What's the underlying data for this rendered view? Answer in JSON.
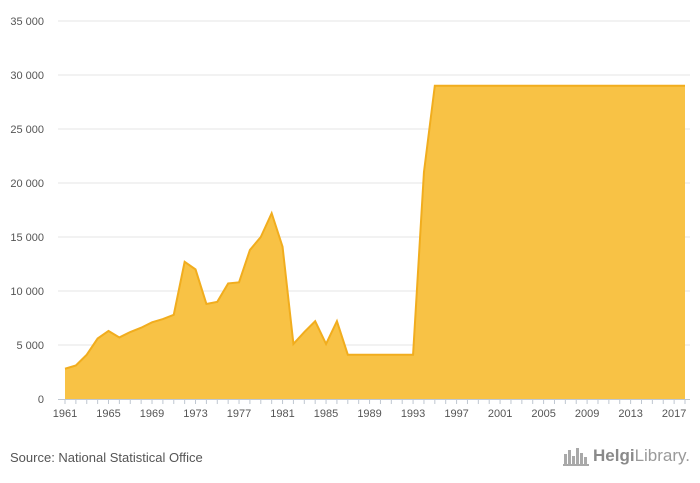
{
  "chart_data": {
    "type": "area",
    "color": "#f8c03f",
    "line_color": "#f1ad1e",
    "x": [
      1961,
      1962,
      1963,
      1964,
      1965,
      1966,
      1967,
      1968,
      1969,
      1970,
      1971,
      1972,
      1973,
      1974,
      1975,
      1976,
      1977,
      1978,
      1979,
      1980,
      1981,
      1982,
      1983,
      1984,
      1985,
      1986,
      1987,
      1988,
      1989,
      1990,
      1991,
      1992,
      1993,
      1994,
      1995,
      1996,
      1997,
      1998,
      1999,
      2000,
      2001,
      2002,
      2003,
      2004,
      2005,
      2006,
      2007,
      2008,
      2009,
      2010,
      2011,
      2012,
      2013,
      2014,
      2015,
      2016,
      2017,
      2018
    ],
    "values": [
      2800,
      3100,
      4100,
      5600,
      6300,
      5700,
      6200,
      6600,
      7100,
      7400,
      7800,
      12700,
      12000,
      8800,
      9000,
      10700,
      10800,
      13800,
      15000,
      17200,
      14100,
      5100,
      6200,
      7200,
      5100,
      7200,
      4100,
      4100,
      4100,
      4100,
      4100,
      4100,
      4100,
      21000,
      29000,
      29000,
      29000,
      29000,
      29000,
      29000,
      29000,
      29000,
      29000,
      29000,
      29000,
      29000,
      29000,
      29000,
      29000,
      29000,
      29000,
      29000,
      29000,
      29000,
      29000,
      29000,
      29000,
      29000
    ],
    "xticks": [
      1961,
      1965,
      1969,
      1973,
      1977,
      1981,
      1985,
      1989,
      1993,
      1997,
      2001,
      2005,
      2009,
      2013,
      2017
    ],
    "yticks": [
      0,
      5000,
      10000,
      15000,
      20000,
      25000,
      30000,
      35000
    ],
    "ytick_labels": [
      "0",
      "5 000",
      "10 000",
      "15 000",
      "20 000",
      "25 000",
      "30 000",
      "35 000"
    ],
    "xlim": [
      1961,
      2018
    ],
    "ylim": [
      0,
      35000
    ],
    "grid": true,
    "title": "",
    "xlabel": "",
    "ylabel": ""
  },
  "footer": {
    "source": "Source: National Statistical Office",
    "logo_left": "Helgi",
    "logo_right": "Library."
  }
}
